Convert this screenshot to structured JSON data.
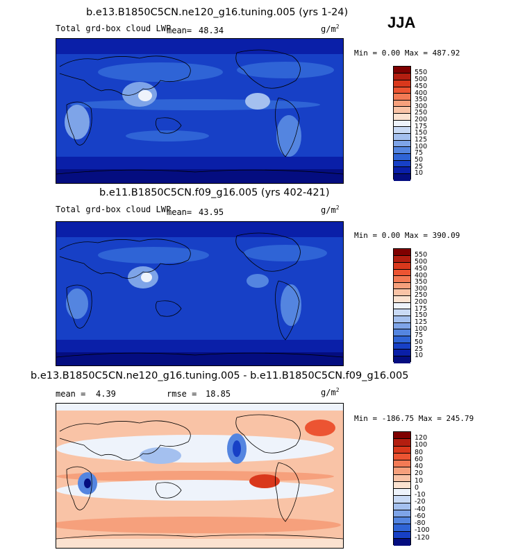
{
  "season": "JJA",
  "units_base": "g/m",
  "units_sup": "2",
  "panels": [
    {
      "title": "b.e13.B1850C5CN.ne120_g16.tuning.005 (yrs 1-24)",
      "variable": "Total grd-box cloud LWP",
      "mean_label": "mean=",
      "mean_value": "48.34",
      "minmax": "Min =    0.00 Max = 487.92",
      "colorbar": {
        "labels": [
          "550",
          "500",
          "450",
          "400",
          "350",
          "300",
          "250",
          "200",
          "175",
          "150",
          "125",
          "100",
          "75",
          "50",
          "25",
          "10"
        ],
        "colors": [
          "#7f0000",
          "#b31e10",
          "#d9381c",
          "#ec5432",
          "#f27a55",
          "#f6a07c",
          "#f9c3a6",
          "#fbe2d0",
          "#eef3fb",
          "#c9daf5",
          "#a4c0ef",
          "#7ea4e8",
          "#5485e0",
          "#2f64d6",
          "#1740c6",
          "#0a1fa8",
          "#040d80"
        ]
      }
    },
    {
      "title": "b.e11.B1850C5CN.f09_g16.005 (yrs 402-421)",
      "variable": "Total grd-box cloud LWP",
      "mean_label": "mean=",
      "mean_value": "43.95",
      "minmax": "Min =    0.00 Max = 390.09",
      "colorbar": {
        "labels": [
          "550",
          "500",
          "450",
          "400",
          "350",
          "300",
          "250",
          "200",
          "175",
          "150",
          "125",
          "100",
          "75",
          "50",
          "25",
          "10"
        ],
        "colors": [
          "#7f0000",
          "#b31e10",
          "#d9381c",
          "#ec5432",
          "#f27a55",
          "#f6a07c",
          "#f9c3a6",
          "#fbe2d0",
          "#eef3fb",
          "#c9daf5",
          "#a4c0ef",
          "#7ea4e8",
          "#5485e0",
          "#2f64d6",
          "#1740c6",
          "#0a1fa8",
          "#040d80"
        ]
      }
    },
    {
      "title": "b.e13.B1850C5CN.ne120_g16.tuning.005 - b.e11.B1850C5CN.f09_g16.005",
      "mean_label": "mean =",
      "mean_value": "4.39",
      "rmse_label": "rmse =",
      "rmse_value": "18.85",
      "minmax": "Min = -186.75 Max = 245.79",
      "colorbar": {
        "labels": [
          "120",
          "100",
          "80",
          "60",
          "40",
          "20",
          "10",
          "0",
          "-10",
          "-20",
          "-40",
          "-60",
          "-80",
          "-100",
          "-120"
        ],
        "colors": [
          "#7f0000",
          "#b31e10",
          "#d9381c",
          "#ec5432",
          "#f27a55",
          "#f6a07c",
          "#f9c3a6",
          "#fbe2d0",
          "#eef3fb",
          "#c9daf5",
          "#a4c0ef",
          "#7ea4e8",
          "#5485e0",
          "#2f64d6",
          "#1740c6",
          "#040d80"
        ]
      }
    }
  ]
}
